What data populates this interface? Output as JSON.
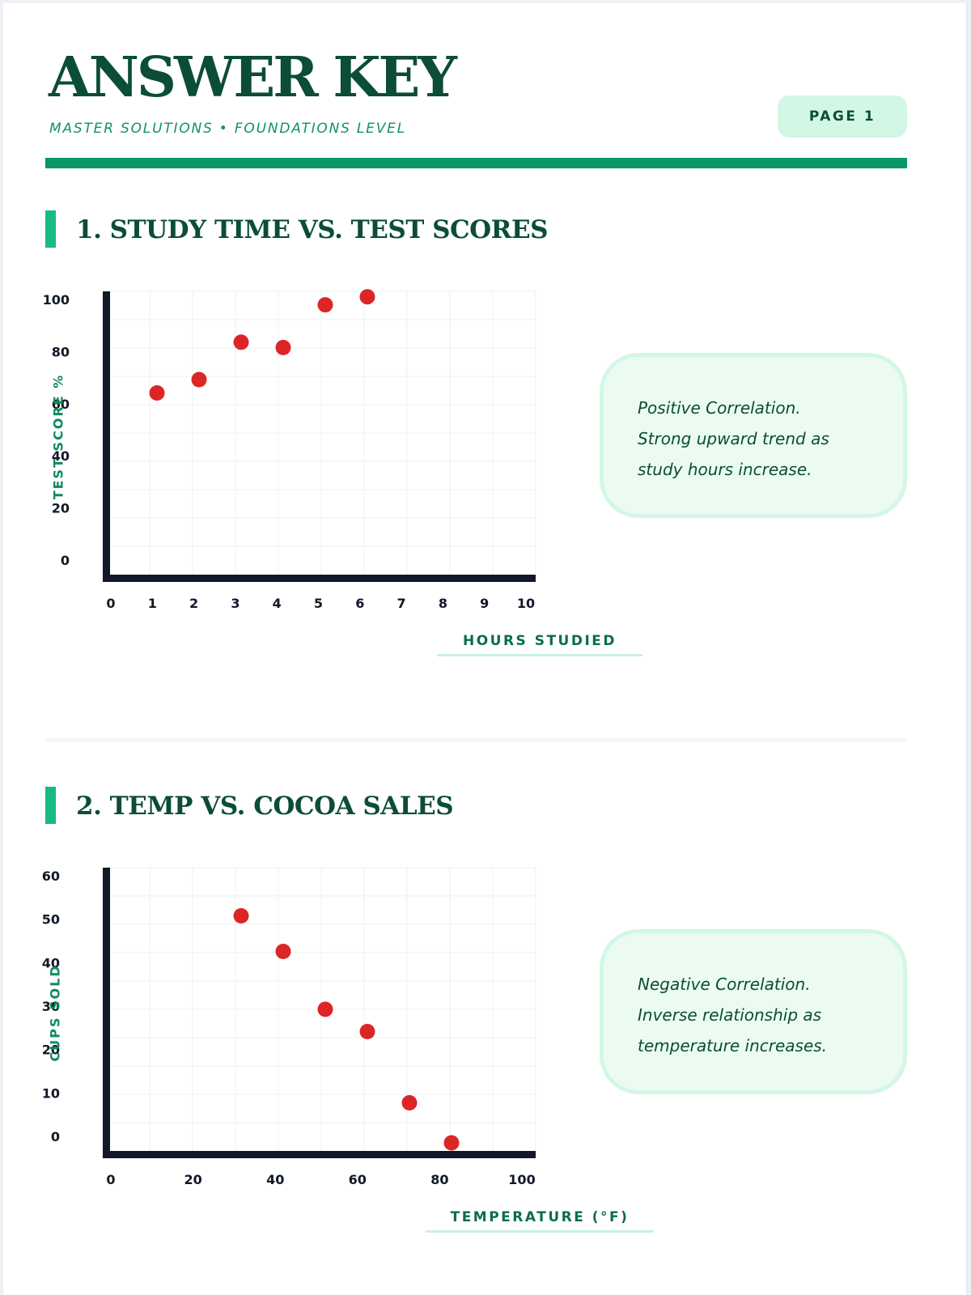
{
  "header": {
    "title": "ANSWER KEY",
    "subtitle": "MASTER SOLUTIONS • FOUNDATIONS LEVEL",
    "page_badge": "PAGE 1"
  },
  "sections": [
    {
      "title": "1. STUDY TIME VS. TEST SCORES",
      "note_lines": [
        "Positive Correlation.",
        "Strong upward trend as",
        "study hours increase."
      ]
    },
    {
      "title": "2. TEMP VS. COCOA SALES",
      "note_lines": [
        "Negative Correlation.",
        "Inverse relationship as",
        "temperature increases."
      ]
    }
  ],
  "colors": {
    "accent": "#0b9866",
    "heading": "#0b4d36",
    "point": "#dc2626",
    "axis": "#111827",
    "note_bg": "#ebfbf2"
  },
  "chart_data": [
    {
      "type": "scatter",
      "title": "1. STUDY TIME VS. TEST SCORES",
      "xlabel": "HOURS STUDIED",
      "ylabel": "TEST SCORE %",
      "xlim": [
        0,
        10
      ],
      "ylim": [
        0,
        100
      ],
      "x_ticks": [
        0,
        1,
        2,
        3,
        4,
        5,
        6,
        7,
        8,
        9,
        10
      ],
      "y_ticks": [
        0,
        20,
        40,
        60,
        80,
        100
      ],
      "grid": true,
      "points": [
        {
          "x": 1,
          "y": 65
        },
        {
          "x": 2,
          "y": 70
        },
        {
          "x": 3,
          "y": 84
        },
        {
          "x": 4,
          "y": 82
        },
        {
          "x": 5,
          "y": 98
        },
        {
          "x": 6,
          "y": 101
        }
      ]
    },
    {
      "type": "scatter",
      "title": "2. TEMP VS. COCOA SALES",
      "xlabel": "TEMPERATURE (°F)",
      "ylabel": "CUPS SOLD",
      "xlim": [
        0,
        100
      ],
      "ylim": [
        0,
        60
      ],
      "x_ticks": [
        0,
        20,
        40,
        60,
        80,
        100
      ],
      "y_ticks": [
        0,
        10,
        20,
        30,
        40,
        50,
        60
      ],
      "grid": true,
      "points": [
        {
          "x": 30,
          "y": 51
        },
        {
          "x": 40,
          "y": 43
        },
        {
          "x": 50,
          "y": 30
        },
        {
          "x": 60,
          "y": 25
        },
        {
          "x": 70,
          "y": 9
        },
        {
          "x": 80,
          "y": 0
        }
      ]
    }
  ]
}
